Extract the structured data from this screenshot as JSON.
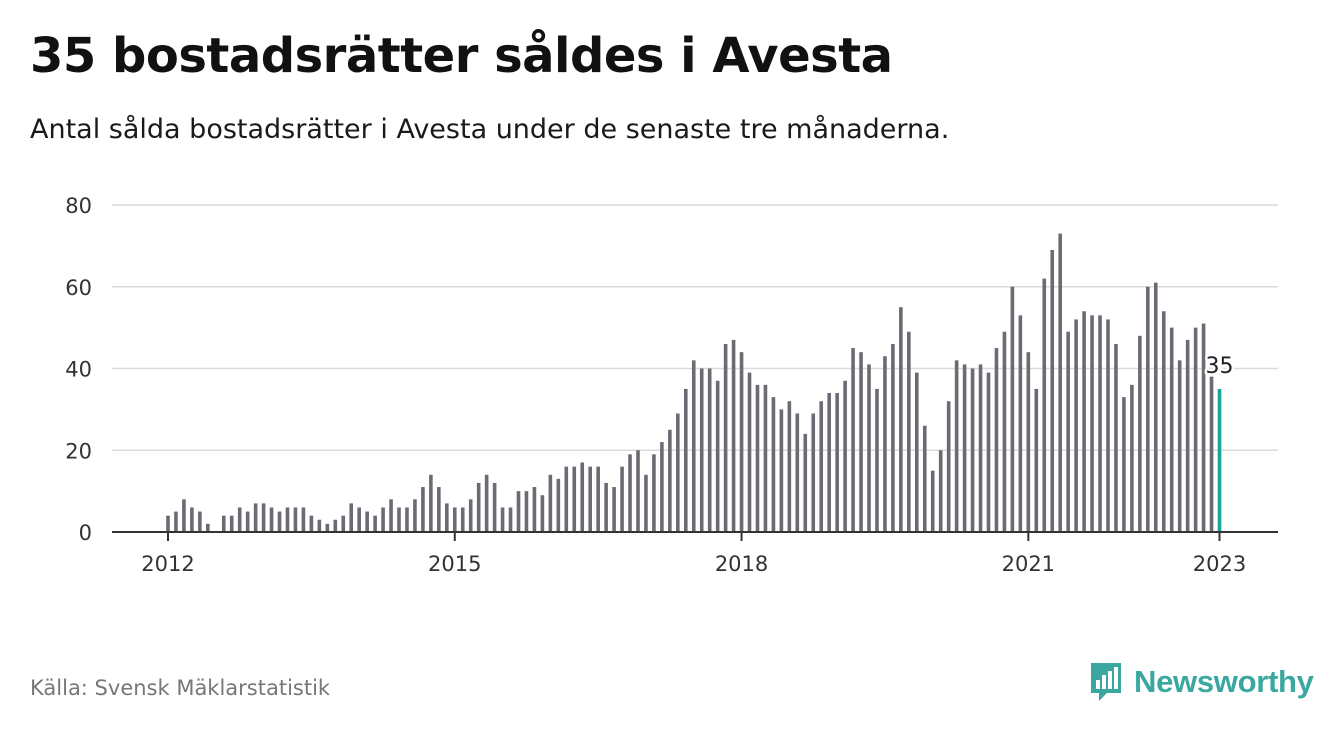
{
  "header": {
    "title": "35 bostadsrätter såldes i Avesta",
    "subtitle": "Antal sålda bostadsrätter i Avesta under de senaste tre månaderna."
  },
  "footer": {
    "source": "Källa: Svensk Mäklarstatistik",
    "brand": "Newsworthy",
    "brand_icon": "bar-chart-speech-bubble-icon"
  },
  "colors": {
    "bar": "#6b6b73",
    "highlight": "#1aa39a",
    "grid": "#d9d9d9",
    "axis": "#333333",
    "brand": "#3aa7a0"
  },
  "chart_data": {
    "type": "bar",
    "title": "35 bostadsrätter såldes i Avesta",
    "subtitle": "Antal sålda bostadsrätter i Avesta under de senaste tre månaderna.",
    "xlabel": "",
    "ylabel": "",
    "ylim": [
      0,
      80
    ],
    "yticks": [
      0,
      20,
      40,
      60,
      80
    ],
    "xticks": [
      {
        "label": "2012",
        "index": 0
      },
      {
        "label": "2015",
        "index": 36
      },
      {
        "label": "2018",
        "index": 72
      },
      {
        "label": "2021",
        "index": 108
      },
      {
        "label": "2023",
        "index": 132
      }
    ],
    "grid": true,
    "x_start": "2012-01",
    "x_interval": "month",
    "values": [
      4,
      5,
      8,
      6,
      5,
      2,
      0,
      4,
      4,
      6,
      5,
      7,
      7,
      6,
      5,
      6,
      6,
      6,
      4,
      3,
      2,
      3,
      4,
      7,
      6,
      5,
      4,
      6,
      8,
      6,
      6,
      8,
      11,
      14,
      11,
      7,
      6,
      6,
      8,
      12,
      14,
      12,
      6,
      6,
      10,
      10,
      11,
      9,
      14,
      13,
      16,
      16,
      17,
      16,
      16,
      12,
      11,
      16,
      19,
      20,
      14,
      19,
      22,
      25,
      29,
      35,
      42,
      40,
      40,
      37,
      46,
      47,
      44,
      39,
      36,
      36,
      33,
      30,
      32,
      29,
      24,
      29,
      32,
      34,
      34,
      37,
      45,
      44,
      41,
      35,
      43,
      46,
      55,
      49,
      39,
      26,
      15,
      20,
      32,
      42,
      41,
      40,
      41,
      39,
      45,
      49,
      60,
      53,
      44,
      35,
      62,
      69,
      73,
      49,
      52,
      54,
      53,
      53,
      52,
      46,
      33,
      36,
      48,
      60,
      61,
      54,
      50,
      42,
      47,
      50,
      51,
      38,
      35
    ],
    "highlight": {
      "index": 132,
      "label": "35"
    }
  }
}
